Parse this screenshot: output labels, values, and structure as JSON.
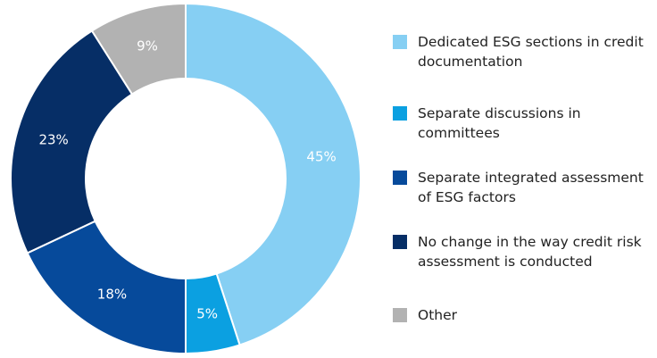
{
  "chart_data": {
    "type": "pie",
    "categories": [
      "Dedicated ESG sections in credit documentation",
      "Separate discussions in committees",
      "Separate integrated assessment of ESG factors",
      "No change in the way credit risk assessment is conducted",
      "Other"
    ],
    "values": [
      45,
      5,
      18,
      23,
      9
    ],
    "value_labels": [
      "45%",
      "5%",
      "18%",
      "23%",
      "9%"
    ],
    "colors": [
      "#86cff3",
      "#0ba0e1",
      "#064a9b",
      "#062e66",
      "#b2b2b2"
    ],
    "donut": true,
    "legend": "right"
  }
}
